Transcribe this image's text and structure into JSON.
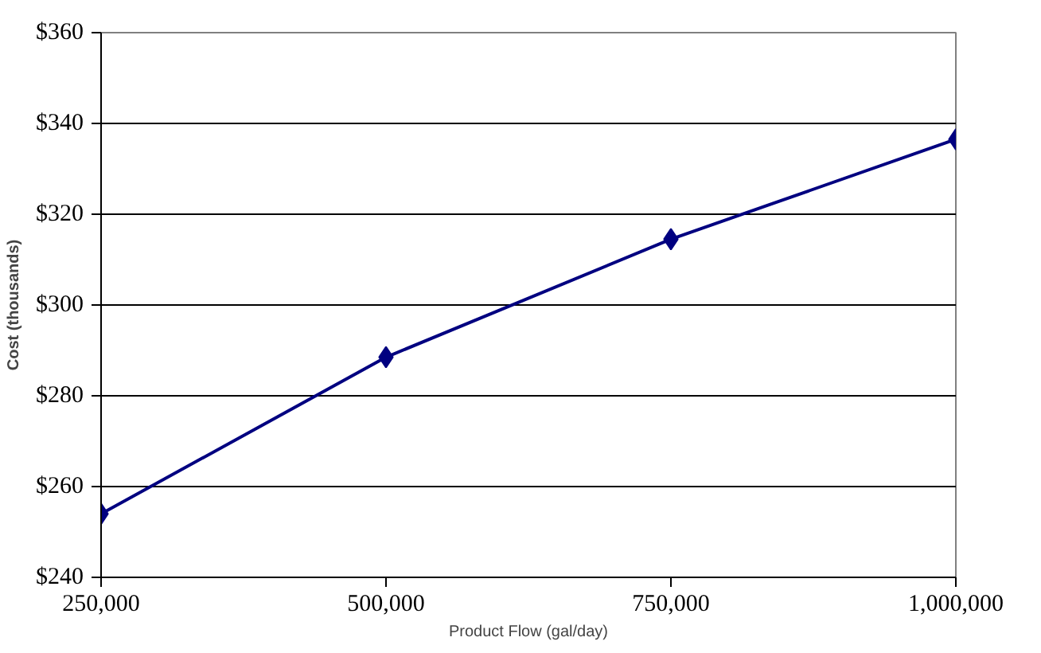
{
  "chart_data": {
    "type": "line",
    "xlabel": "Product Flow (gal/day)",
    "ylabel": "Cost (thousands)",
    "x": [
      250000,
      500000,
      750000,
      1000000
    ],
    "series": [
      {
        "color": "#000080",
        "values": [
          254,
          288.5,
          314.5,
          336.5
        ]
      }
    ],
    "xlim": [
      250000,
      1000000
    ],
    "xticks": [
      {
        "value": 250000,
        "label": "250,000"
      },
      {
        "value": 500000,
        "label": "500,000"
      },
      {
        "value": 750000,
        "label": "750,000"
      },
      {
        "value": 1000000,
        "label": "1,000,000"
      }
    ],
    "ylim": [
      240,
      360
    ],
    "yticks": [
      {
        "value": 240,
        "label": "$240"
      },
      {
        "value": 260,
        "label": "$260"
      },
      {
        "value": 280,
        "label": "$280"
      },
      {
        "value": 300,
        "label": "$300"
      },
      {
        "value": 320,
        "label": "$320"
      },
      {
        "value": 340,
        "label": "$340"
      },
      {
        "value": 360,
        "label": "$360"
      }
    ],
    "grid": "y",
    "marker": "diamond",
    "line_style": "solid"
  }
}
